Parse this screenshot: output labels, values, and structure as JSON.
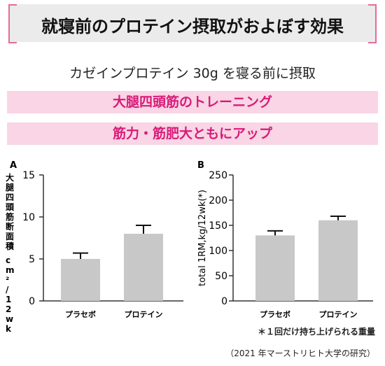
{
  "header": {
    "title": "就寝前のプロテイン摂取がおよぼす効果",
    "subtitle": "カゼインプロテイン 30g を寝る前に摂取",
    "band1": "大腿四頭筋のトレーニング",
    "band2": "筋力・筋肥大ともにアップ"
  },
  "colors": {
    "bar": "#c8c8c8",
    "accent": "#d81b78",
    "band": "#f9d5e5",
    "bracket": "#e56b9a"
  },
  "chart_data": [
    {
      "type": "bar",
      "panel": "A",
      "ylabel": "大腿四頭筋断面積 cm²/12wk",
      "categories": [
        "プラセボ",
        "プロテイン"
      ],
      "values": [
        5.0,
        8.0
      ],
      "error": [
        0.7,
        1.0
      ],
      "ylim": [
        0,
        15
      ],
      "yticks": [
        "0",
        "5",
        "10",
        "15"
      ]
    },
    {
      "type": "bar",
      "panel": "B",
      "ylabel": "total 1RM,kg/12wk(*)",
      "categories": [
        "プラセボ",
        "プロテイン"
      ],
      "values": [
        130,
        160
      ],
      "error": [
        9,
        8
      ],
      "ylim": [
        0,
        250
      ],
      "yticks": [
        "0",
        "50",
        "100",
        "150",
        "200",
        "250"
      ]
    }
  ],
  "footnote": "＊１回だけ持ち上げられる重量",
  "source": "（2021 年マーストリヒト大学の研究）"
}
